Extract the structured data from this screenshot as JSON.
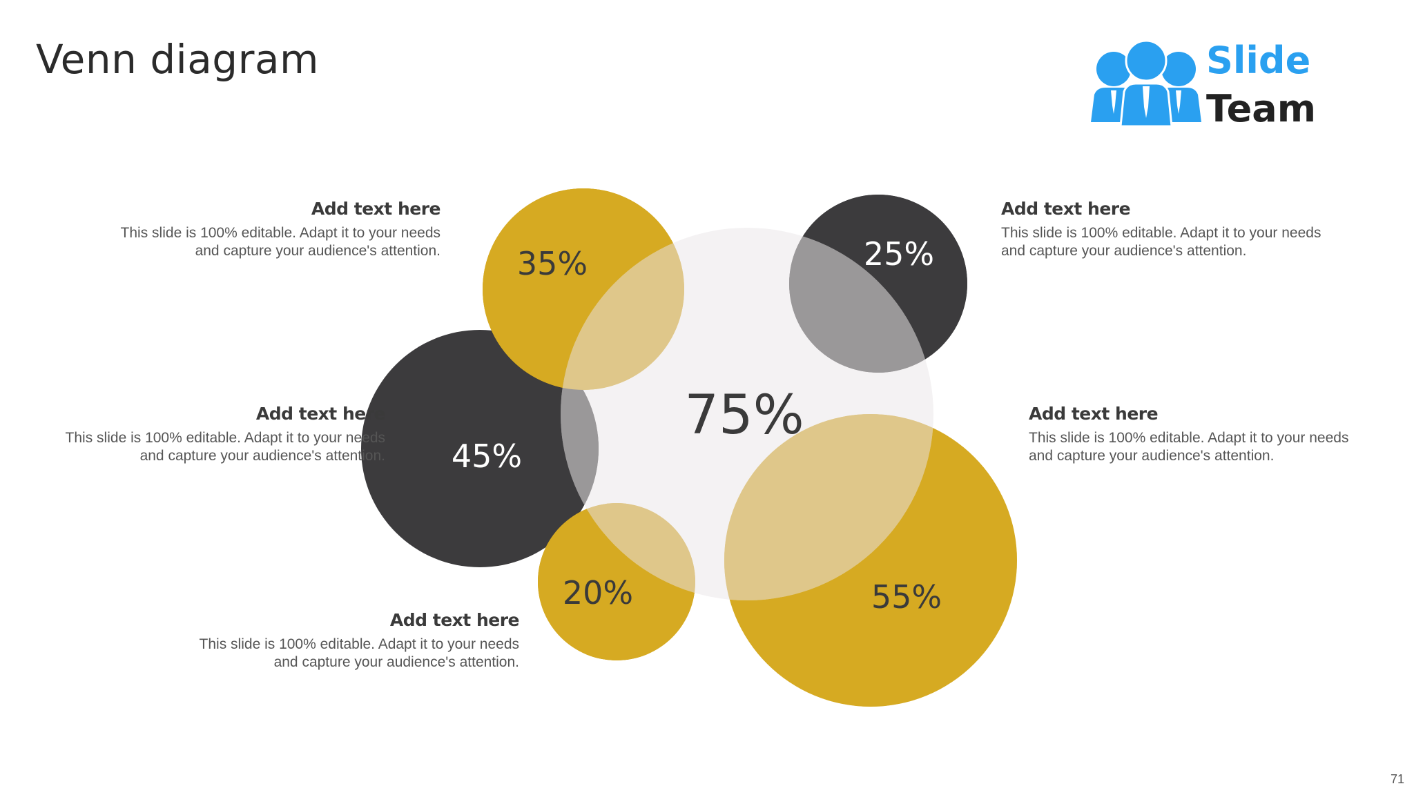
{
  "slide": {
    "title": "Venn diagram",
    "page_number": "71"
  },
  "logo": {
    "line1": "Slide",
    "line2": "Team",
    "primary_color": "#2aa0f0",
    "text_color": "#222222"
  },
  "colors": {
    "gold": "#d6aa22",
    "dark": "#3c3b3d",
    "light_gray": "#ebe8ea"
  },
  "circles": [
    {
      "id": "center",
      "value": "75%",
      "fill": "light_gray"
    },
    {
      "id": "top-left",
      "value": "35%",
      "fill": "gold"
    },
    {
      "id": "middle-left",
      "value": "45%",
      "fill": "dark"
    },
    {
      "id": "bottom-left",
      "value": "20%",
      "fill": "gold"
    },
    {
      "id": "top-right",
      "value": "25%",
      "fill": "dark"
    },
    {
      "id": "bottom-right",
      "value": "55%",
      "fill": "gold"
    }
  ],
  "callouts": [
    {
      "id": "top-left",
      "heading": "Add text here",
      "line1": "This slide is 100% editable. Adapt it to your needs",
      "line2": "and capture your audience's attention."
    },
    {
      "id": "middle-left",
      "heading": "Add text here",
      "line1": "This slide is 100% editable. Adapt it to your needs",
      "line2": "and capture your audience's attention."
    },
    {
      "id": "bottom-left",
      "heading": "Add text here",
      "line1": "This slide is 100% editable. Adapt it to your needs",
      "line2": "and capture your audience's attention."
    },
    {
      "id": "top-right",
      "heading": "Add text here",
      "line1": "This slide is 100% editable. Adapt it to your needs",
      "line2": "and capture your audience's attention."
    },
    {
      "id": "middle-right",
      "heading": "Add text here",
      "line1": "This slide is 100% editable. Adapt it to your needs",
      "line2": "and capture your audience's attention."
    }
  ]
}
